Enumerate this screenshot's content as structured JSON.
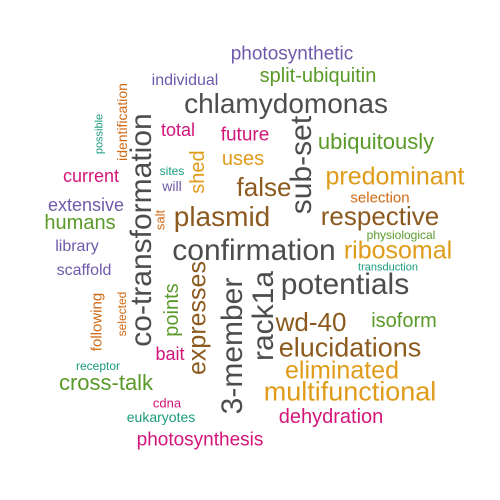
{
  "palette": {
    "grey": "#4d4d4d",
    "brown": "#8c5a1e",
    "gold": "#e09b19",
    "green": "#5a9a28",
    "magenta": "#d3157a",
    "purple": "#6e5aaa",
    "teal": "#1a9a7d",
    "orange": "#d06a14"
  },
  "words": [
    {
      "text": "photosynthetic",
      "color": "purple"
    },
    {
      "text": "split-ubiquitin",
      "color": "green"
    },
    {
      "text": "individual",
      "color": "purple"
    },
    {
      "text": "chlamydomonas",
      "color": "grey"
    },
    {
      "text": "identification",
      "color": "orange"
    },
    {
      "text": "possible",
      "color": "teal"
    },
    {
      "text": "total",
      "color": "magenta"
    },
    {
      "text": "future",
      "color": "magenta"
    },
    {
      "text": "ubiquitously",
      "color": "green"
    },
    {
      "text": "uses",
      "color": "gold"
    },
    {
      "text": "current",
      "color": "magenta"
    },
    {
      "text": "sites",
      "color": "teal"
    },
    {
      "text": "will",
      "color": "purple"
    },
    {
      "text": "shed",
      "color": "gold"
    },
    {
      "text": "false",
      "color": "brown"
    },
    {
      "text": "sub-set",
      "color": "grey"
    },
    {
      "text": "predominant",
      "color": "gold"
    },
    {
      "text": "extensive",
      "color": "purple"
    },
    {
      "text": "salt",
      "color": "orange"
    },
    {
      "text": "plasmid",
      "color": "brown"
    },
    {
      "text": "selection",
      "color": "orange"
    },
    {
      "text": "humans",
      "color": "green"
    },
    {
      "text": "respective",
      "color": "brown"
    },
    {
      "text": "co-transformation",
      "color": "grey"
    },
    {
      "text": "physiological",
      "color": "green"
    },
    {
      "text": "library",
      "color": "purple"
    },
    {
      "text": "confirmation",
      "color": "grey"
    },
    {
      "text": "ribosomal",
      "color": "gold"
    },
    {
      "text": "scaffold",
      "color": "purple"
    },
    {
      "text": "transduction",
      "color": "teal"
    },
    {
      "text": "expresses",
      "color": "brown"
    },
    {
      "text": "3-member",
      "color": "grey"
    },
    {
      "text": "rack1a",
      "color": "grey"
    },
    {
      "text": "potentials",
      "color": "grey"
    },
    {
      "text": "following",
      "color": "orange"
    },
    {
      "text": "selected",
      "color": "orange"
    },
    {
      "text": "points",
      "color": "green"
    },
    {
      "text": "wd-40",
      "color": "brown"
    },
    {
      "text": "isoform",
      "color": "green"
    },
    {
      "text": "elucidations",
      "color": "brown"
    },
    {
      "text": "bait",
      "color": "magenta"
    },
    {
      "text": "receptor",
      "color": "teal"
    },
    {
      "text": "eliminated",
      "color": "gold"
    },
    {
      "text": "cross-talk",
      "color": "green"
    },
    {
      "text": "multifunctional",
      "color": "gold"
    },
    {
      "text": "cdna",
      "color": "magenta"
    },
    {
      "text": "eukaryotes",
      "color": "teal"
    },
    {
      "text": "dehydration",
      "color": "magenta"
    },
    {
      "text": "photosynthesis",
      "color": "magenta"
    }
  ]
}
